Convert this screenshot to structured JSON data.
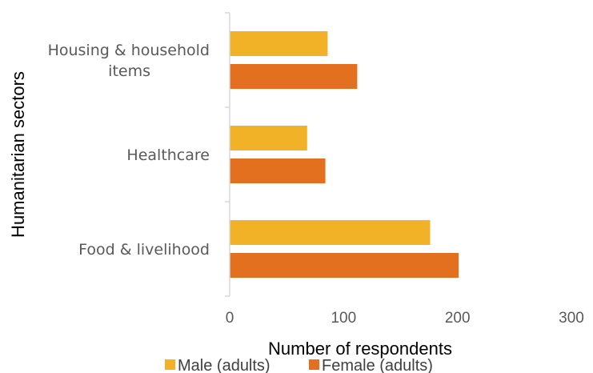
{
  "chart_data": {
    "type": "bar",
    "orientation": "horizontal",
    "categories": [
      "Housing & household items",
      "Healthcare",
      "Food & livelihood"
    ],
    "category_label_lines": [
      [
        "Housing & household",
        "items"
      ],
      [
        "Healthcare"
      ],
      [
        "Food & livelihood"
      ]
    ],
    "series": [
      {
        "name": "Male (adults)",
        "color": "#F2B227",
        "values": [
          86,
          68,
          176
        ]
      },
      {
        "name": "Female (adults)",
        "color": "#E2701F",
        "values": [
          112,
          84,
          201
        ]
      }
    ],
    "xlabel": "Number of respondents",
    "ylabel": "Humanitarian sectors",
    "xlim": [
      0,
      300
    ],
    "xticks": [
      0,
      100,
      200,
      300
    ],
    "grid": false,
    "legend_position": "bottom"
  }
}
